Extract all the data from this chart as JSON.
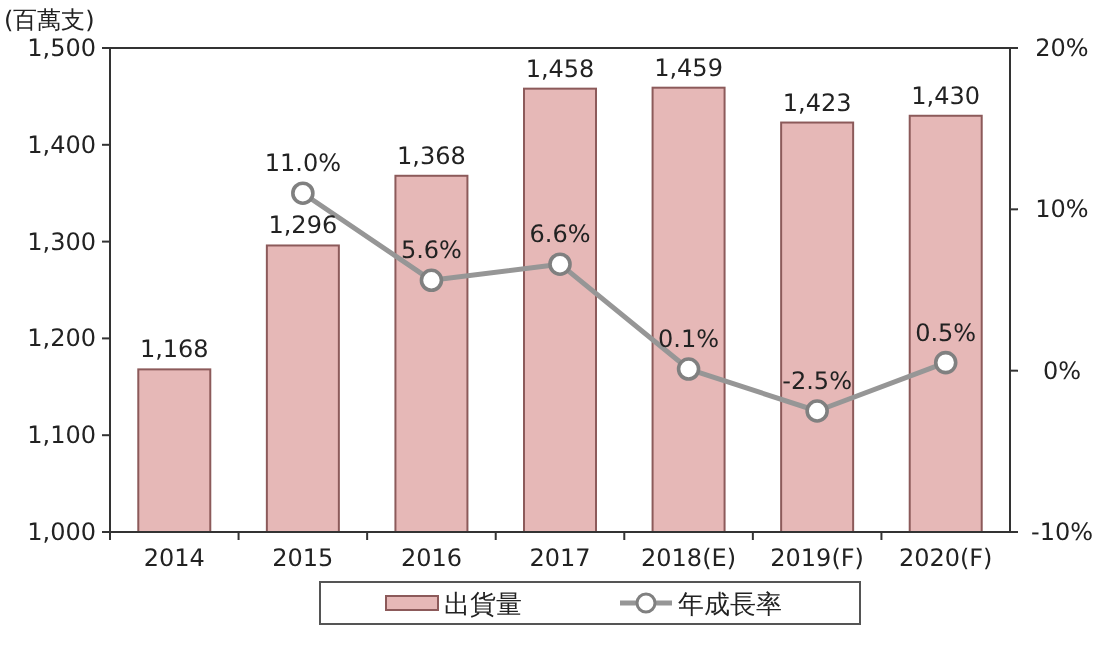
{
  "chart_data": {
    "type": "bar",
    "ylabel": "(百萬支)",
    "categories": [
      "2014",
      "2015",
      "2016",
      "2017",
      "2018(E)",
      "2019(F)",
      "2020(F)"
    ],
    "series": [
      {
        "name": "出貨量",
        "color": "#e6b8b7",
        "values": [
          1168,
          1296,
          1368,
          1458,
          1459,
          1423,
          1430
        ],
        "value_labels": [
          "1,168",
          "1,296",
          "1,368",
          "1,458",
          "1,459",
          "1,423",
          "1,430"
        ]
      },
      {
        "name": "年成長率",
        "type": "line",
        "axis": "y2",
        "color": "#969696",
        "marker": "circle",
        "values": [
          null,
          11.0,
          5.6,
          6.6,
          0.1,
          -2.5,
          0.5
        ],
        "value_labels": [
          null,
          "11.0%",
          "5.6%",
          "6.6%",
          "0.1%",
          "-2.5%",
          "0.5%"
        ]
      }
    ],
    "ylim": [
      1000,
      1500
    ],
    "yticks": [
      {
        "value": 1000,
        "label": "1,000"
      },
      {
        "value": 1100,
        "label": "1,100"
      },
      {
        "value": 1200,
        "label": "1,200"
      },
      {
        "value": 1300,
        "label": "1,300"
      },
      {
        "value": 1400,
        "label": "1,400"
      },
      {
        "value": 1500,
        "label": "1,500"
      }
    ],
    "y2lim": [
      -10,
      20
    ],
    "y2ticks": [
      {
        "value": -10,
        "label": "-10%"
      },
      {
        "value": 0,
        "label": "0%"
      },
      {
        "value": 10,
        "label": "10%"
      },
      {
        "value": 20,
        "label": "20%"
      }
    ],
    "legend": "bottom",
    "grid": false
  }
}
